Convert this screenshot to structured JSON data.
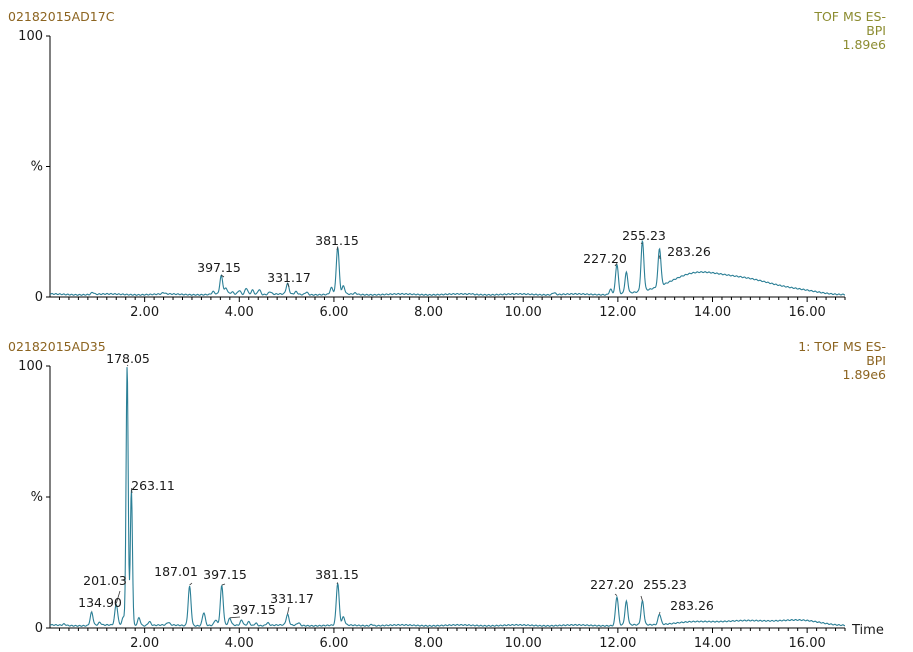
{
  "chart_data": [
    {
      "type": "line",
      "sample_id": "02182015AD17C",
      "header": [
        "TOF MS ES-",
        "BPI",
        "1.89e6"
      ],
      "header_color": "#8c8c30",
      "id_color": "#8c6420",
      "ylabel": "%",
      "xlabel": "",
      "ylim": [
        0,
        100
      ],
      "y_ticks": [
        "100",
        "%",
        "0"
      ],
      "xlim": [
        0,
        16.8
      ],
      "x_ticks": [
        "2.00",
        "4.00",
        "6.00",
        "8.00",
        "10.00",
        "12.00",
        "14.00",
        "16.00"
      ],
      "line_color": "#2b7f96",
      "baseline": 1.0,
      "peaks": [
        {
          "x": 0.9,
          "y": 1.8
        },
        {
          "x": 1.3,
          "y": 1.0
        },
        {
          "x": 2.4,
          "y": 1.5
        },
        {
          "x": 3.45,
          "y": 2.0
        },
        {
          "x": 3.62,
          "y": 8.0
        },
        {
          "x": 3.72,
          "y": 3.2
        },
        {
          "x": 3.85,
          "y": 1.8
        },
        {
          "x": 4.0,
          "y": 2.5
        },
        {
          "x": 4.15,
          "y": 3.5
        },
        {
          "x": 4.28,
          "y": 2.8
        },
        {
          "x": 4.42,
          "y": 3.0
        },
        {
          "x": 4.65,
          "y": 2.0
        },
        {
          "x": 5.02,
          "y": 5.0
        },
        {
          "x": 5.2,
          "y": 2.0
        },
        {
          "x": 5.42,
          "y": 2.0
        },
        {
          "x": 5.95,
          "y": 3.5
        },
        {
          "x": 6.08,
          "y": 19.0
        },
        {
          "x": 6.2,
          "y": 4.0
        },
        {
          "x": 6.45,
          "y": 1.5
        },
        {
          "x": 8.9,
          "y": 1.2
        },
        {
          "x": 10.65,
          "y": 1.8
        },
        {
          "x": 11.85,
          "y": 3.0
        },
        {
          "x": 11.98,
          "y": 12.5
        },
        {
          "x": 12.18,
          "y": 9.0
        },
        {
          "x": 12.52,
          "y": 20.0
        },
        {
          "x": 12.88,
          "y": 15.5
        },
        {
          "x": 13.3,
          "y": 4.5
        },
        {
          "x": 13.8,
          "y": 5.5
        },
        {
          "x": 14.4,
          "y": 4.5
        },
        {
          "x": 15.0,
          "y": 3.5
        },
        {
          "x": 15.6,
          "y": 2.5
        }
      ],
      "peak_labels": [
        {
          "text": "397.15",
          "x": 3.62,
          "y": 8.0
        },
        {
          "text": "331.17",
          "x": 5.02,
          "y": 5.0
        },
        {
          "text": "381.15",
          "x": 6.08,
          "y": 19.0
        },
        {
          "text": "227.20",
          "x": 11.98,
          "y": 12.5
        },
        {
          "text": "255.23",
          "x": 12.52,
          "y": 20.0
        },
        {
          "text": "283.26",
          "x": 12.88,
          "y": 15.5
        }
      ]
    },
    {
      "type": "line",
      "sample_id": "02182015AD35",
      "header": [
        "1: TOF MS ES-",
        "BPI",
        "1.89e6"
      ],
      "header_color": "#8c6420",
      "id_color": "#8c6420",
      "ylabel": "%",
      "xlabel": "Time",
      "ylim": [
        0,
        100
      ],
      "y_ticks": [
        "100",
        "%",
        "0"
      ],
      "xlim": [
        0,
        16.8
      ],
      "x_ticks": [
        "2.00",
        "4.00",
        "6.00",
        "8.00",
        "10.00",
        "12.00",
        "14.00",
        "16.00"
      ],
      "line_color": "#2b7f96",
      "baseline": 1.0,
      "peaks": [
        {
          "x": 0.3,
          "y": 1.5
        },
        {
          "x": 0.88,
          "y": 6.0
        },
        {
          "x": 1.05,
          "y": 2.0
        },
        {
          "x": 1.4,
          "y": 9.0
        },
        {
          "x": 1.55,
          "y": 4.0
        },
        {
          "x": 1.63,
          "y": 100.0
        },
        {
          "x": 1.72,
          "y": 53.0
        },
        {
          "x": 1.88,
          "y": 4.0
        },
        {
          "x": 2.1,
          "y": 2.5
        },
        {
          "x": 2.5,
          "y": 2.0
        },
        {
          "x": 2.95,
          "y": 16.0
        },
        {
          "x": 3.25,
          "y": 6.0
        },
        {
          "x": 3.5,
          "y": 3.0
        },
        {
          "x": 3.63,
          "y": 16.0
        },
        {
          "x": 3.8,
          "y": 3.5
        },
        {
          "x": 4.05,
          "y": 3.0
        },
        {
          "x": 4.2,
          "y": 2.5
        },
        {
          "x": 4.35,
          "y": 2.0
        },
        {
          "x": 4.6,
          "y": 2.0
        },
        {
          "x": 5.02,
          "y": 5.0
        },
        {
          "x": 5.25,
          "y": 2.0
        },
        {
          "x": 6.08,
          "y": 17.0
        },
        {
          "x": 6.2,
          "y": 4.0
        },
        {
          "x": 6.8,
          "y": 1.5
        },
        {
          "x": 11.98,
          "y": 12.0
        },
        {
          "x": 12.18,
          "y": 10.0
        },
        {
          "x": 12.52,
          "y": 10.0
        },
        {
          "x": 12.88,
          "y": 5.0
        },
        {
          "x": 13.5,
          "y": 2.0
        },
        {
          "x": 14.5,
          "y": 2.5
        },
        {
          "x": 15.7,
          "y": 3.0
        }
      ],
      "peak_labels": [
        {
          "text": "178.05",
          "x": 1.63,
          "y": 100.0
        },
        {
          "text": "263.11",
          "x": 1.72,
          "y": 53.0
        },
        {
          "text": "201.03",
          "x": 1.4,
          "y": 9.0
        },
        {
          "text": "134.90",
          "x": 0.88,
          "y": 6.0
        },
        {
          "text": "187.01",
          "x": 2.95,
          "y": 16.0
        },
        {
          "text": "397.15",
          "x": 3.63,
          "y": 16.0
        },
        {
          "text": "397.15",
          "x": 3.8,
          "y": 3.5
        },
        {
          "text": "331.17",
          "x": 5.02,
          "y": 5.0
        },
        {
          "text": "381.15",
          "x": 6.08,
          "y": 17.0
        },
        {
          "text": "227.20",
          "x": 11.98,
          "y": 12.0
        },
        {
          "text": "255.23",
          "x": 12.52,
          "y": 10.0
        },
        {
          "text": "283.26",
          "x": 12.88,
          "y": 5.0
        }
      ]
    }
  ]
}
